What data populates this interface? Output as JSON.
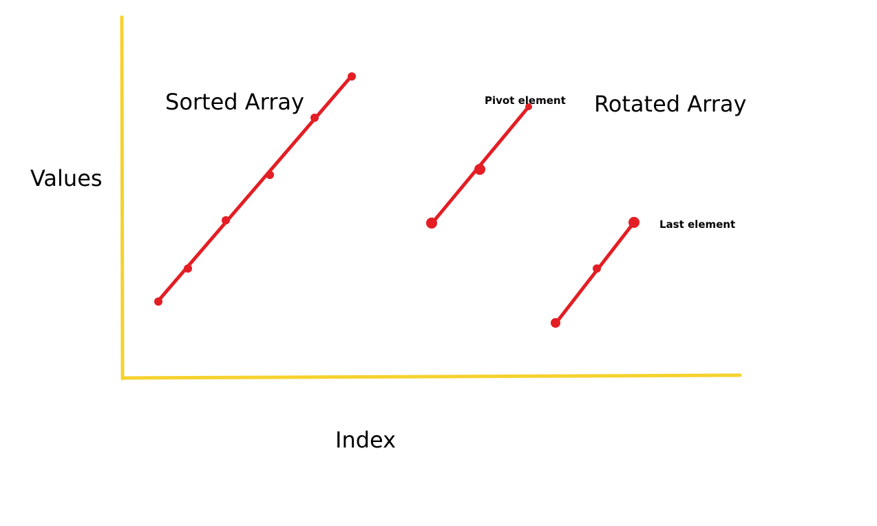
{
  "labels": {
    "y_axis": "Values",
    "x_axis": "Index",
    "sorted": "Sorted Array",
    "rotated": "Rotated Array",
    "pivot": "Pivot element",
    "last": "Last element"
  },
  "colors": {
    "axis": "#f5d22e",
    "series": "#e31e24",
    "text": "#000000",
    "background": "#ffffff"
  },
  "sorted_array_point_count": 6,
  "rotated_array_segment_point_counts": [
    3,
    3
  ]
}
